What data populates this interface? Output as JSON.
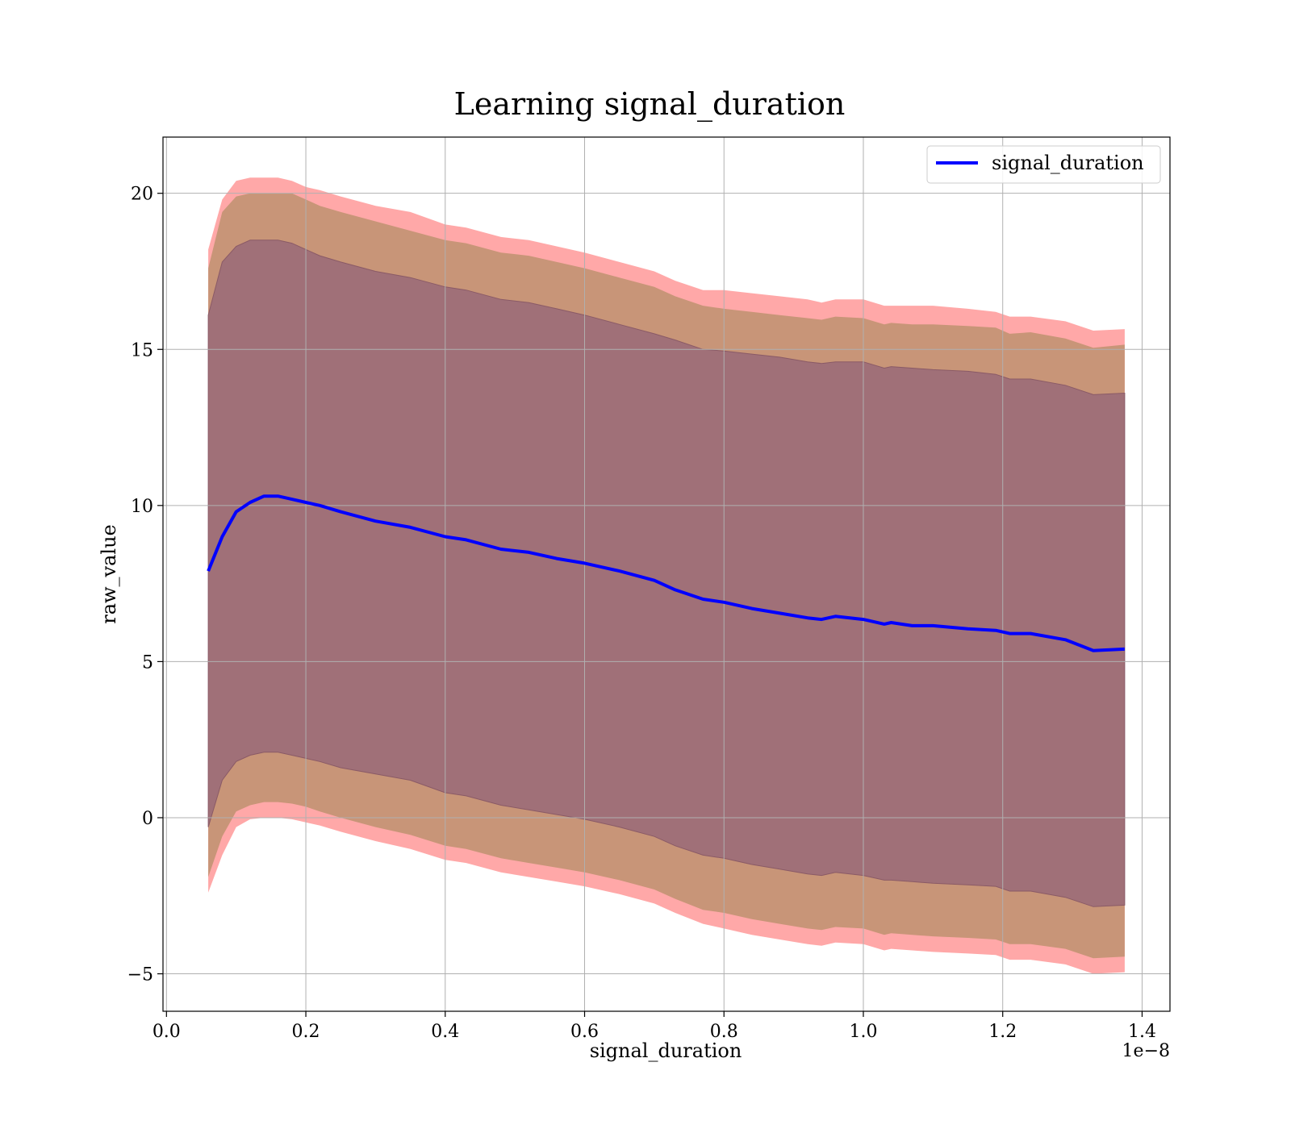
{
  "chart_data": {
    "type": "line",
    "title": "Learning signal_duration",
    "xlabel": "signal_duration",
    "ylabel": "raw_value",
    "x_offset_text": "1e−8",
    "xlim": [
      -0.005,
      1.44
    ],
    "ylim": [
      -6.2,
      21.8
    ],
    "x_ticks": [
      0.0,
      0.2,
      0.4,
      0.6,
      0.8,
      1.0,
      1.2,
      1.4
    ],
    "x_tick_labels": [
      "0.0",
      "0.2",
      "0.4",
      "0.6",
      "0.8",
      "1.0",
      "1.2",
      "1.4"
    ],
    "y_ticks": [
      -5,
      0,
      5,
      10,
      15,
      20
    ],
    "y_tick_labels": [
      "−5",
      "0",
      "5",
      "10",
      "15",
      "20"
    ],
    "grid": true,
    "legend_position": "top-right",
    "colors": {
      "line": "#0000ff",
      "outer_band": "#ffa8a8",
      "middle_band": "#c89578",
      "inner_band": "#a07078",
      "grid": "#b0b0b0"
    },
    "series": [
      {
        "name": "signal_duration",
        "x": [
          0.06,
          0.08,
          0.1,
          0.12,
          0.14,
          0.16,
          0.18,
          0.2,
          0.22,
          0.25,
          0.3,
          0.35,
          0.4,
          0.43,
          0.48,
          0.52,
          0.56,
          0.6,
          0.65,
          0.7,
          0.73,
          0.77,
          0.8,
          0.84,
          0.88,
          0.92,
          0.94,
          0.96,
          1.0,
          1.03,
          1.04,
          1.07,
          1.1,
          1.15,
          1.19,
          1.21,
          1.24,
          1.29,
          1.33,
          1.375
        ],
        "y": [
          7.9,
          9.0,
          9.8,
          10.1,
          10.3,
          10.3,
          10.2,
          10.1,
          10.0,
          9.8,
          9.5,
          9.3,
          9.0,
          8.9,
          8.6,
          8.5,
          8.3,
          8.15,
          7.9,
          7.6,
          7.3,
          7.0,
          6.9,
          6.7,
          6.55,
          6.4,
          6.35,
          6.45,
          6.35,
          6.2,
          6.25,
          6.15,
          6.15,
          6.05,
          6.0,
          5.9,
          5.9,
          5.7,
          5.35,
          5.4
        ]
      }
    ],
    "bands": {
      "outer_upper": [
        18.2,
        19.8,
        20.4,
        20.5,
        20.5,
        20.5,
        20.4,
        20.2,
        20.1,
        19.9,
        19.6,
        19.4,
        19.0,
        18.9,
        18.6,
        18.5,
        18.3,
        18.1,
        17.8,
        17.5,
        17.2,
        16.9,
        16.9,
        16.8,
        16.7,
        16.6,
        16.5,
        16.6,
        16.6,
        16.4,
        16.4,
        16.4,
        16.4,
        16.3,
        16.2,
        16.05,
        16.05,
        15.9,
        15.6,
        15.65
      ],
      "middle_upper": [
        17.6,
        19.4,
        19.9,
        20.0,
        20.0,
        20.0,
        20.0,
        19.8,
        19.6,
        19.4,
        19.1,
        18.8,
        18.5,
        18.4,
        18.1,
        18.0,
        17.8,
        17.6,
        17.3,
        17.0,
        16.7,
        16.4,
        16.3,
        16.2,
        16.1,
        16.0,
        15.95,
        16.05,
        16.0,
        15.8,
        15.85,
        15.8,
        15.8,
        15.75,
        15.7,
        15.5,
        15.55,
        15.35,
        15.05,
        15.15
      ],
      "inner_upper": [
        16.1,
        17.8,
        18.3,
        18.5,
        18.5,
        18.5,
        18.4,
        18.2,
        18.0,
        17.8,
        17.5,
        17.3,
        17.0,
        16.9,
        16.6,
        16.5,
        16.3,
        16.1,
        15.8,
        15.5,
        15.3,
        15.0,
        14.95,
        14.85,
        14.75,
        14.6,
        14.55,
        14.6,
        14.6,
        14.4,
        14.45,
        14.4,
        14.35,
        14.3,
        14.2,
        14.05,
        14.05,
        13.85,
        13.55,
        13.6
      ],
      "inner_lower": [
        -0.3,
        1.2,
        1.8,
        2.0,
        2.1,
        2.1,
        2.0,
        1.9,
        1.8,
        1.6,
        1.4,
        1.2,
        0.8,
        0.7,
        0.4,
        0.25,
        0.1,
        -0.05,
        -0.3,
        -0.6,
        -0.9,
        -1.2,
        -1.3,
        -1.5,
        -1.65,
        -1.8,
        -1.85,
        -1.75,
        -1.85,
        -2.0,
        -2.0,
        -2.05,
        -2.1,
        -2.15,
        -2.2,
        -2.35,
        -2.35,
        -2.55,
        -2.85,
        -2.8
      ],
      "middle_lower": [
        -1.9,
        -0.6,
        0.2,
        0.4,
        0.5,
        0.5,
        0.45,
        0.35,
        0.2,
        0.0,
        -0.3,
        -0.55,
        -0.9,
        -1.0,
        -1.3,
        -1.45,
        -1.6,
        -1.75,
        -2.0,
        -2.3,
        -2.6,
        -2.95,
        -3.05,
        -3.25,
        -3.4,
        -3.55,
        -3.6,
        -3.5,
        -3.55,
        -3.75,
        -3.7,
        -3.75,
        -3.8,
        -3.85,
        -3.9,
        -4.05,
        -4.05,
        -4.2,
        -4.5,
        -4.45
      ],
      "outer_lower": [
        -2.4,
        -1.2,
        -0.3,
        -0.05,
        0.0,
        0.0,
        -0.05,
        -0.15,
        -0.25,
        -0.45,
        -0.75,
        -1.0,
        -1.35,
        -1.45,
        -1.75,
        -1.9,
        -2.05,
        -2.2,
        -2.45,
        -2.75,
        -3.05,
        -3.4,
        -3.55,
        -3.75,
        -3.9,
        -4.05,
        -4.1,
        -4.0,
        -4.05,
        -4.25,
        -4.2,
        -4.25,
        -4.3,
        -4.35,
        -4.4,
        -4.55,
        -4.55,
        -4.7,
        -5.0,
        -4.95
      ]
    }
  }
}
